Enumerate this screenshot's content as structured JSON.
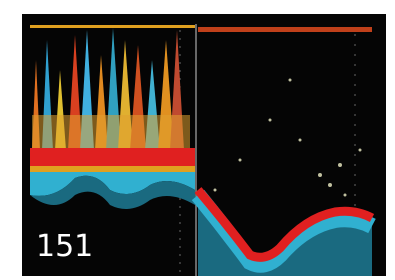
{
  "display": {
    "depth_reading": "151"
  }
}
